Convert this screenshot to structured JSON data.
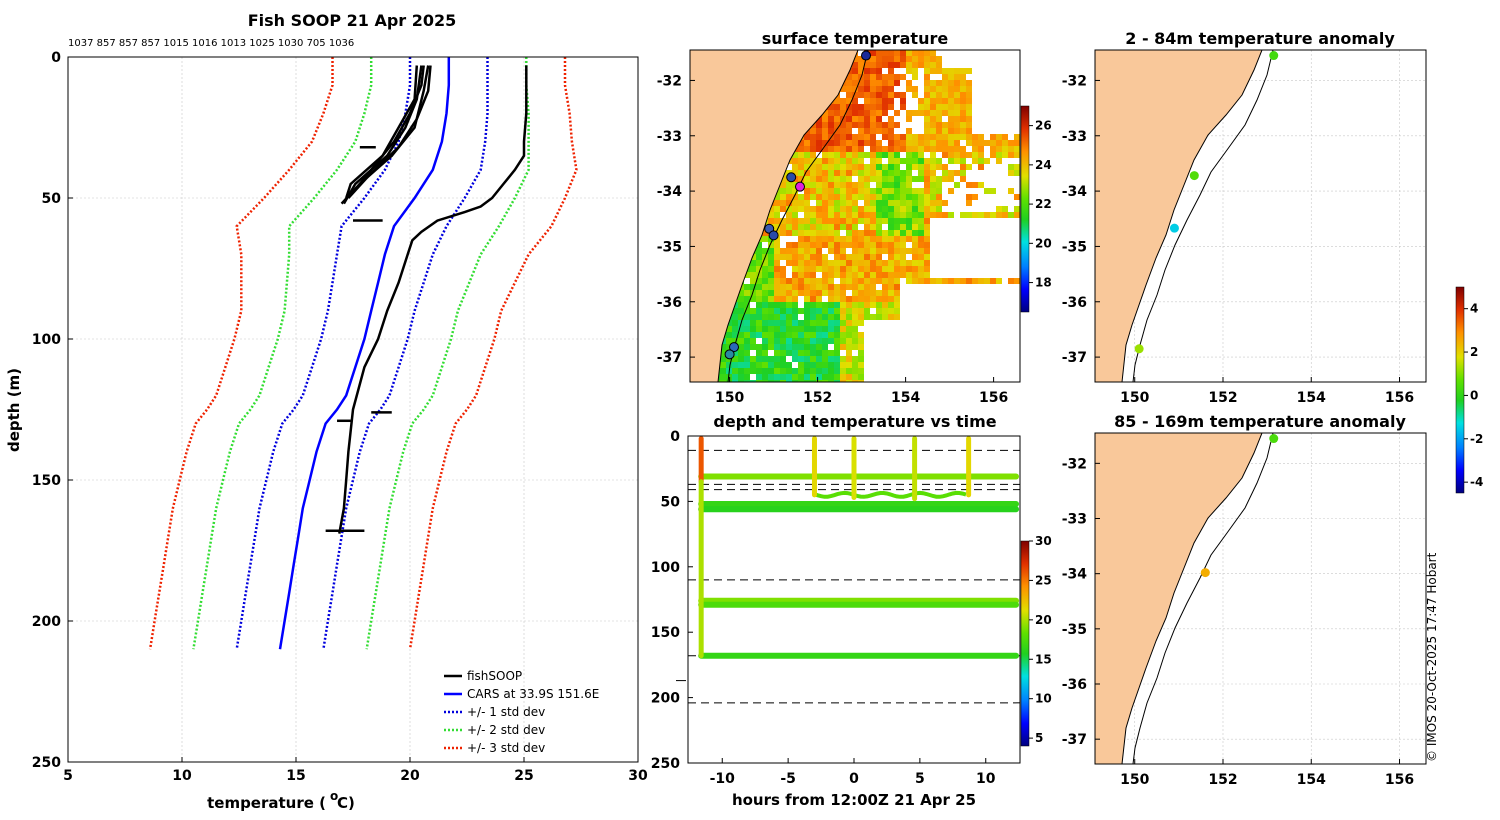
{
  "figure": {
    "copyright": "© IMOS 20-Oct-2025 17:47 Hobart"
  },
  "chart_data": [
    {
      "id": "profile",
      "type": "line",
      "title": "Fish SOOP 21 Apr 2025",
      "xlabel": "temperature (",
      "xlabel_sup": "o",
      "xlabel_tail": " C)",
      "ylabel": "depth (m)",
      "xlim": [
        5,
        30
      ],
      "ylim": [
        0,
        250
      ],
      "xticks": [
        5,
        10,
        15,
        20,
        25,
        30
      ],
      "yticks": [
        0,
        50,
        100,
        150,
        200,
        250
      ],
      "counts": "1037 857 857 857 1015 1016 1013 1025 1030 705 1036",
      "legend": [
        "fishSOOP",
        "CARS at 33.9S 151.6E",
        "+/- 1 std dev",
        "+/- 2 std dev",
        "+/- 3 std dev"
      ],
      "depth": [
        0,
        10,
        20,
        30,
        40,
        50,
        60,
        70,
        80,
        90,
        100,
        110,
        120,
        125,
        130,
        140,
        150,
        160,
        170,
        180,
        190,
        200,
        210
      ],
      "cars_mean": [
        21.7,
        21.7,
        21.6,
        21.4,
        21.0,
        20.2,
        19.3,
        18.9,
        18.6,
        18.3,
        18.0,
        17.6,
        17.2,
        16.8,
        16.3,
        15.9,
        15.6,
        15.3,
        15.1,
        14.9,
        14.7,
        14.5,
        14.3
      ],
      "std1": [
        1.7,
        1.7,
        1.8,
        1.9,
        2.1,
        2.2,
        2.3,
        2.1,
        2.0,
        1.9,
        1.9,
        1.9,
        1.9,
        1.9,
        1.9,
        1.9,
        1.9,
        1.9,
        1.9,
        1.9,
        1.9,
        1.9,
        1.9
      ],
      "series": [
        {
          "name": "fishSOOP profile 1",
          "depth": [
            3,
            12,
            25,
            35,
            45,
            52
          ],
          "temp": [
            20.8,
            20.6,
            20.2,
            19.2,
            17.8,
            17.0
          ]
        },
        {
          "name": "fishSOOP profile 2",
          "depth": [
            3,
            12,
            22,
            32,
            42,
            50
          ],
          "temp": [
            20.9,
            20.8,
            20.3,
            19.5,
            18.2,
            17.3
          ]
        },
        {
          "name": "fishSOOP profile 3",
          "depth": [
            3,
            15,
            25,
            35,
            45,
            52
          ],
          "temp": [
            20.5,
            20.3,
            19.8,
            19.0,
            17.6,
            17.1
          ]
        },
        {
          "name": "fishSOOP profile 4",
          "depth": [
            3,
            10,
            20,
            30,
            40,
            48
          ],
          "temp": [
            20.6,
            20.5,
            20.0,
            19.3,
            18.3,
            17.5
          ]
        },
        {
          "name": "fishSOOP profile 5",
          "depth": [
            3,
            15,
            25,
            35,
            45,
            50
          ],
          "temp": [
            20.3,
            20.2,
            19.5,
            18.8,
            17.4,
            17.2
          ]
        },
        {
          "name": "fishSOOP deep",
          "depth": [
            3,
            20,
            30,
            35,
            40,
            45,
            50,
            53,
            55,
            58,
            62,
            65,
            70,
            80,
            90,
            100,
            110,
            125,
            140,
            150,
            160,
            169
          ],
          "temp": [
            25.1,
            25.1,
            25.0,
            25.0,
            24.6,
            24.1,
            23.6,
            23.1,
            22.4,
            21.2,
            20.5,
            20.1,
            19.9,
            19.5,
            19.0,
            18.6,
            18.0,
            17.5,
            17.3,
            17.2,
            17.1,
            16.9
          ]
        }
      ]
    },
    {
      "id": "sst",
      "type": "heatmap",
      "title": "surface temperature",
      "xticks": [
        150,
        152,
        154,
        156
      ],
      "yticks": [
        -32,
        -33,
        -34,
        -35,
        -36,
        -37
      ],
      "xlim": [
        149.1,
        156.6
      ],
      "ylim": [
        -37.45,
        -31.45
      ],
      "colorbar": {
        "ticks": [
          18,
          20,
          22,
          24,
          26
        ],
        "range": [
          16.5,
          27
        ]
      },
      "stations": [
        {
          "lon": 153.1,
          "lat": -31.55,
          "color": "#1a2a9a"
        },
        {
          "lon": 151.4,
          "lat": -33.75,
          "color": "#2a4aa8"
        },
        {
          "lon": 151.6,
          "lat": -33.92,
          "color": "#dd22dd"
        },
        {
          "lon": 150.9,
          "lat": -34.68,
          "color": "#3a5ab0"
        },
        {
          "lon": 151.0,
          "lat": -34.8,
          "color": "#2a4aa8"
        },
        {
          "lon": 150.1,
          "lat": -36.82,
          "color": "#2a6ab8"
        },
        {
          "lon": 150.0,
          "lat": -36.95,
          "color": "#2a8aa0"
        }
      ]
    },
    {
      "id": "depth_time",
      "type": "scatter",
      "title": "depth and temperature vs time",
      "xlabel": "hours from 12:00Z 21 Apr 25",
      "xlim": [
        -12.6,
        12.6
      ],
      "ylim": [
        0,
        250
      ],
      "xticks": [
        -10,
        -5,
        0,
        5,
        10
      ],
      "yticks": [
        0,
        50,
        100,
        150,
        200,
        250
      ],
      "colorbar": {
        "ticks": [
          5,
          10,
          15,
          20,
          25,
          30
        ],
        "range": [
          4,
          30
        ]
      },
      "dashed_depths": [
        11,
        37,
        41,
        110,
        168,
        204
      ],
      "horizontal_tracks": [
        {
          "depth": 31,
          "t0": -11.6,
          "t1": 12.3,
          "temp": 19.0
        },
        {
          "depth": 52,
          "t0": -11.6,
          "t1": 12.3,
          "temp": 16.5
        },
        {
          "depth": 56,
          "t0": -11.6,
          "t1": 12.3,
          "temp": 16.0
        },
        {
          "depth": 126,
          "t0": -11.6,
          "t1": 12.3,
          "temp": 19.0
        },
        {
          "depth": 129,
          "t0": -11.6,
          "t1": 12.3,
          "temp": 17.5
        },
        {
          "depth": 168,
          "t0": -11.6,
          "t1": 12.3,
          "temp": 16.5
        }
      ],
      "vertical_casts": [
        {
          "t": -11.6,
          "d0": 2,
          "d1": 35,
          "temp": 26.0
        },
        {
          "t": -11.6,
          "d0": 35,
          "d1": 168,
          "temp": 20.0
        },
        {
          "t": -3.0,
          "d0": 2,
          "d1": 45,
          "temp": 21.5
        },
        {
          "t": 0.0,
          "d0": 2,
          "d1": 47,
          "temp": 21.0
        },
        {
          "t": 4.6,
          "d0": 2,
          "d1": 48,
          "temp": 20.5
        },
        {
          "t": 8.7,
          "d0": 2,
          "d1": 45,
          "temp": 21.5
        }
      ]
    },
    {
      "id": "anom_shallow",
      "type": "scatter",
      "title": "2 - 84m temperature anomaly",
      "xticks": [
        150,
        152,
        154,
        156
      ],
      "yticks": [
        -32,
        -33,
        -34,
        -35,
        -36,
        -37
      ],
      "xlim": [
        149.1,
        156.6
      ],
      "ylim": [
        -37.45,
        -31.45
      ],
      "points": [
        {
          "lon": 153.15,
          "lat": -31.55,
          "anomaly": 0.3
        },
        {
          "lon": 151.35,
          "lat": -33.72,
          "anomaly": 0.5
        },
        {
          "lon": 150.9,
          "lat": -34.67,
          "anomaly": -1.5
        },
        {
          "lon": 150.1,
          "lat": -36.85,
          "anomaly": 1.2
        }
      ]
    },
    {
      "id": "anom_deep",
      "type": "scatter",
      "title": "85 - 169m temperature anomaly",
      "xticks": [
        150,
        152,
        154,
        156
      ],
      "yticks": [
        -32,
        -33,
        -34,
        -35,
        -36,
        -37
      ],
      "xlim": [
        149.1,
        156.6
      ],
      "ylim": [
        -37.45,
        -31.45
      ],
      "points": [
        {
          "lon": 153.15,
          "lat": -31.55,
          "anomaly": 0.4
        },
        {
          "lon": 151.6,
          "lat": -33.98,
          "anomaly": 2.5
        }
      ]
    },
    {
      "id": "anomaly_colorbar",
      "type": "colorbar",
      "ticks": [
        -4,
        -2,
        0,
        2,
        4
      ],
      "range": [
        -4.5,
        5
      ]
    }
  ]
}
